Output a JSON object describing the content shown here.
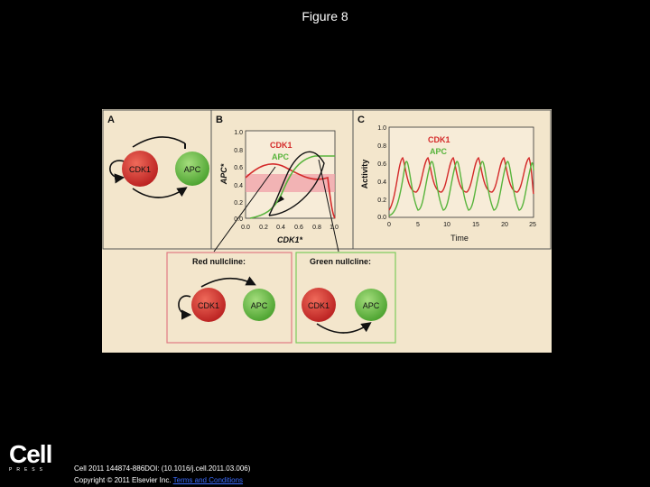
{
  "title": "Figure 8",
  "panels": {
    "a": {
      "letter": "A",
      "node1": "CDK1",
      "node2": "APC"
    },
    "b": {
      "letter": "B",
      "legend_cdk1": "CDK1",
      "legend_apc": "APC",
      "ylabel": "APC*",
      "xlabel": "CDK1*",
      "xticks": [
        "0.0",
        "0.2",
        "0.4",
        "0.6",
        "0.8",
        "1.0"
      ],
      "yticks": [
        "0.0",
        "0.2",
        "0.4",
        "0.6",
        "0.8",
        "1.0"
      ]
    },
    "c": {
      "letter": "C",
      "legend_cdk1": "CDK1",
      "legend_apc": "APC",
      "ylabel": "Activity",
      "xlabel": "Time",
      "xticks": [
        "0",
        "5",
        "10",
        "15",
        "20",
        "25"
      ],
      "yticks": [
        "0.0",
        "0.2",
        "0.4",
        "0.6",
        "0.8",
        "1.0"
      ]
    },
    "red_nullcline": {
      "title": "Red nullcline:",
      "node1": "CDK1",
      "node2": "APC"
    },
    "green_nullcline": {
      "title": "Green nullcline:",
      "node1": "CDK1",
      "node2": "APC"
    }
  },
  "colors": {
    "cdk1": "#d42a2a",
    "apc": "#58b43c",
    "panel_bg": "#f3e6cc",
    "highlight": "#f0a0a8"
  },
  "footer": {
    "logo_word": "Cell",
    "logo_sub": "PRESS",
    "citation": "Cell 2011 144874-886DOI: (10.1016/j.cell.2011.03.006)",
    "copyright_prefix": "Copyright © 2011 Elsevier Inc.",
    "copyright_link": "Terms and Conditions"
  }
}
